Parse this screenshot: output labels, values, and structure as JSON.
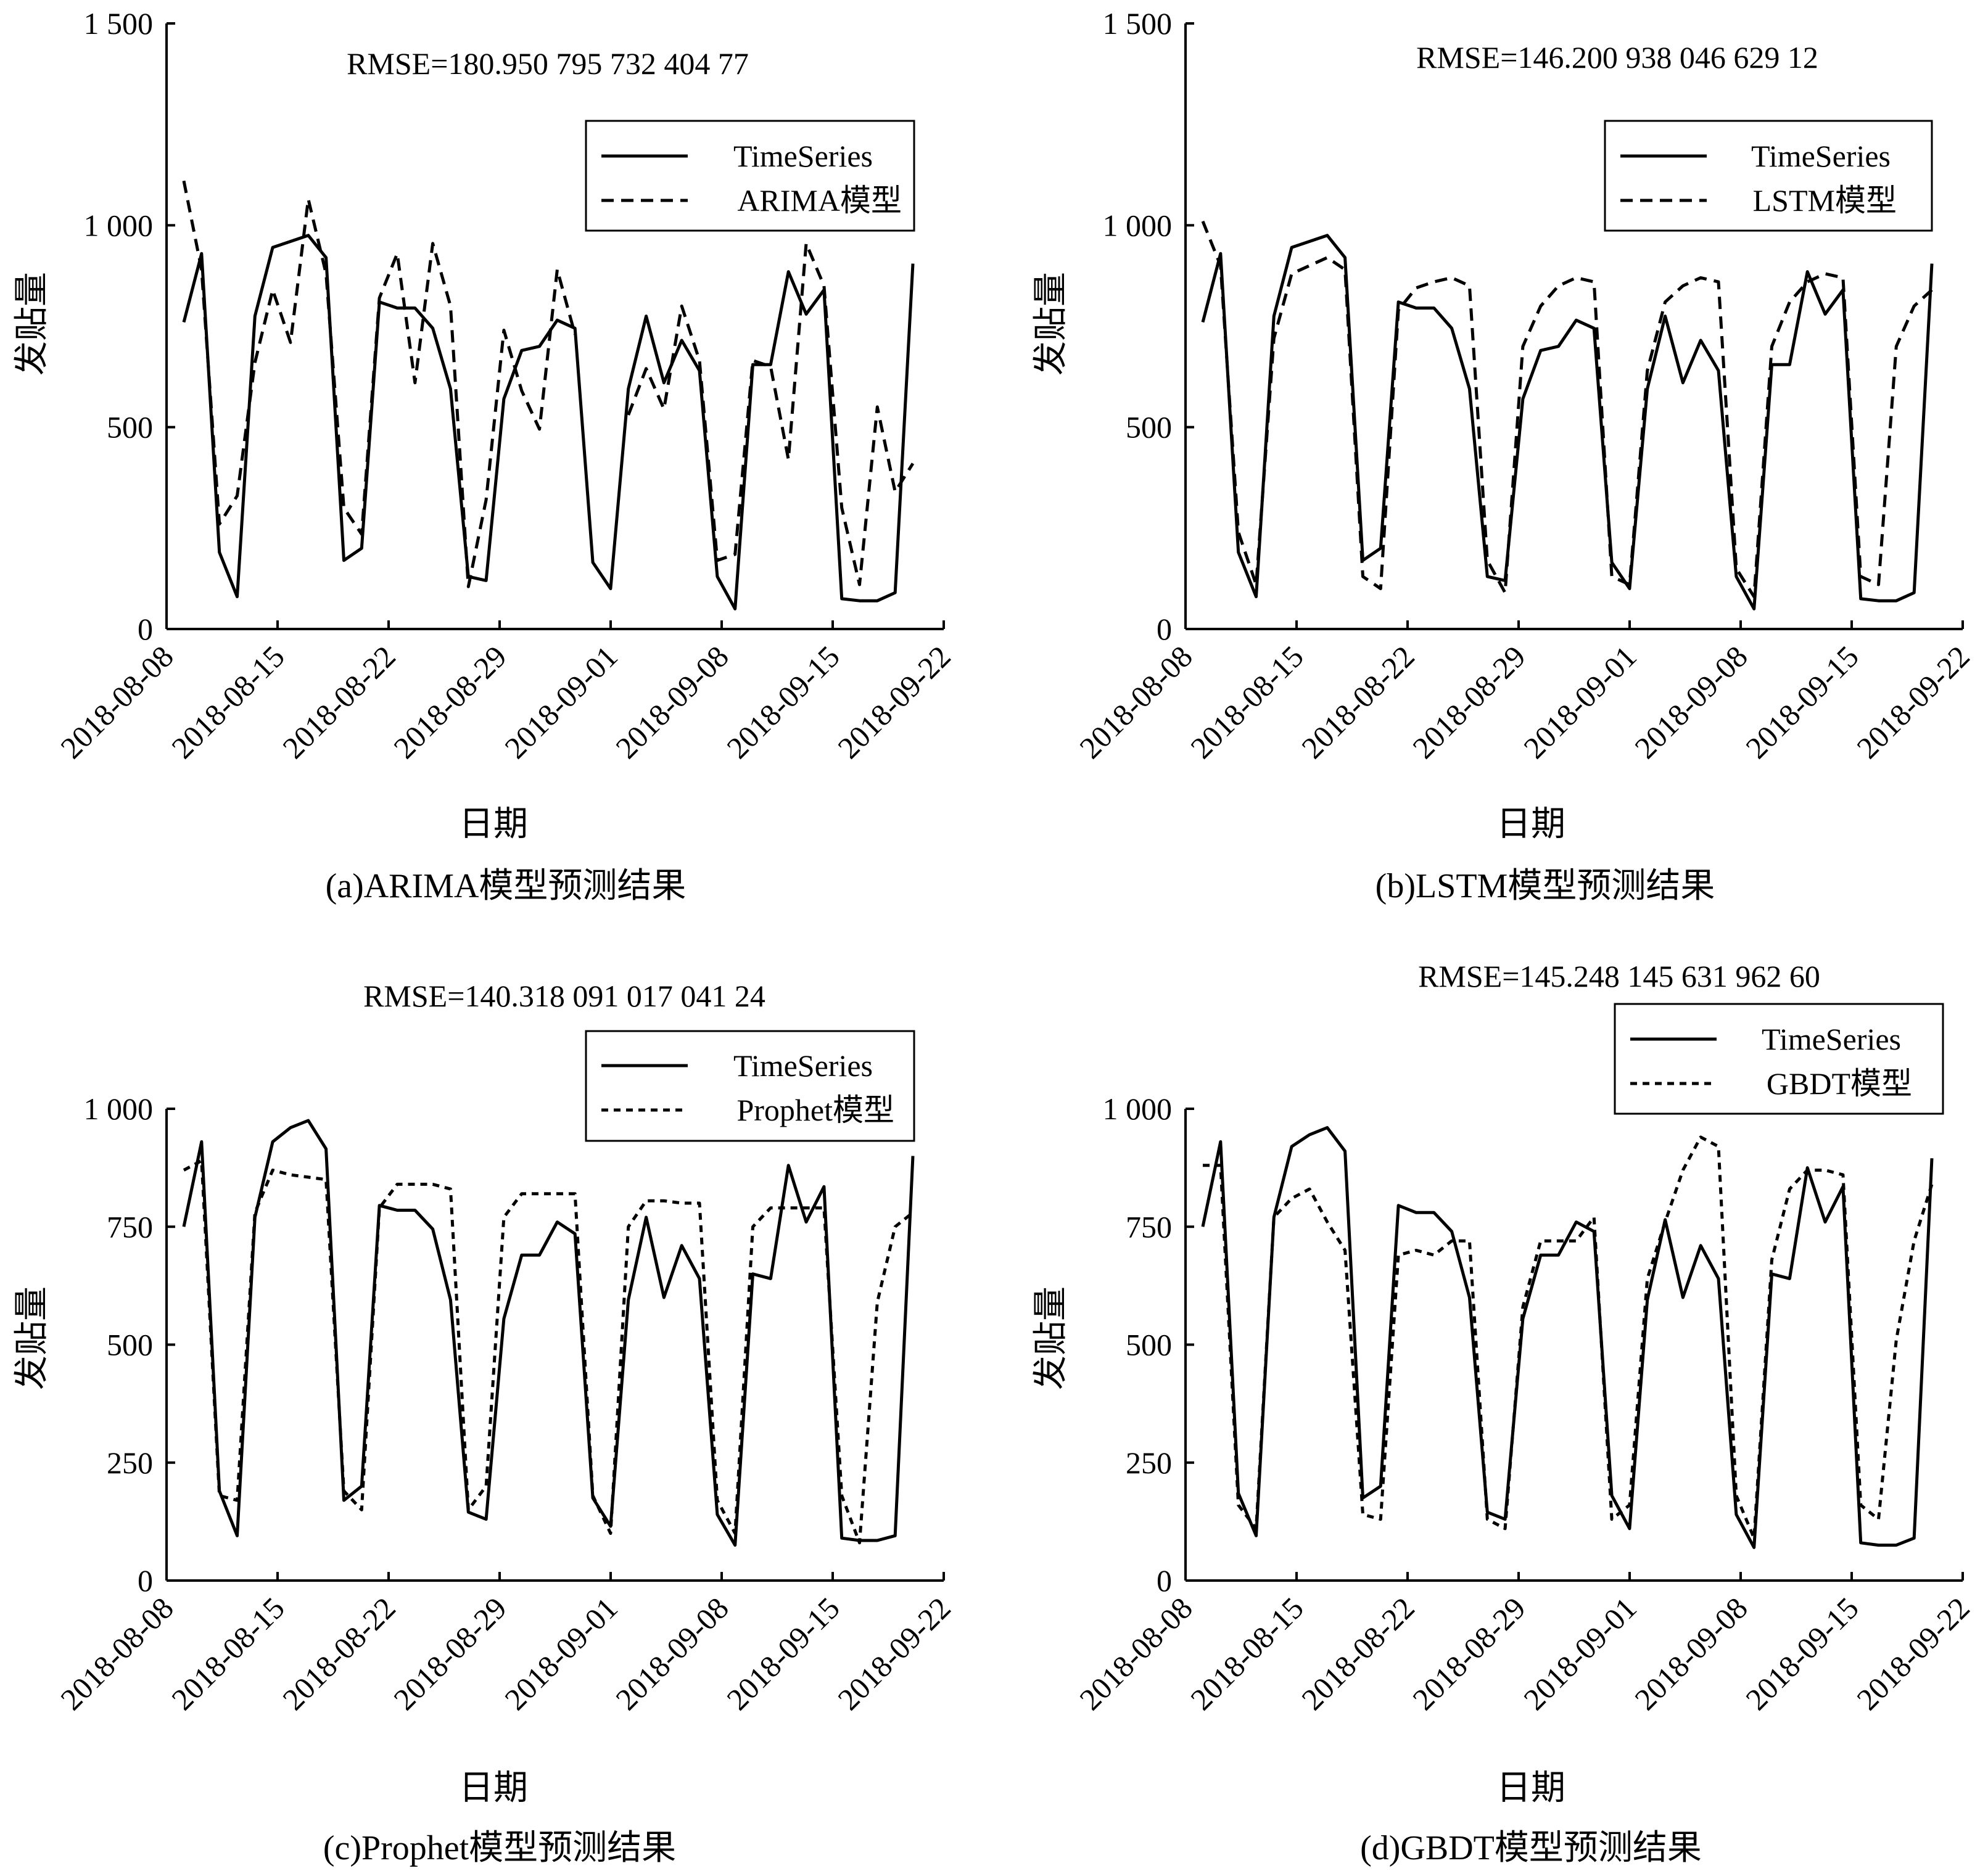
{
  "figure": {
    "ylabel": "发贴量",
    "xlabel": "日期",
    "x_tick_labels": [
      "2018-08-08",
      "2018-08-15",
      "2018-08-22",
      "2018-08-29",
      "2018-09-01",
      "2018-09-08",
      "2018-09-15",
      "2018-09-22"
    ],
    "legend_actual": "TimeSeries"
  },
  "chart_data": [
    {
      "id": "a",
      "type": "line",
      "caption": "(a)ARIMA模型预测结果",
      "annotation": "RMSE=180.950 795 732 404 77",
      "ylim": [
        0,
        1500
      ],
      "y_ticks": [
        0,
        500,
        1000,
        1500
      ],
      "y_tick_labels": [
        "0",
        "500",
        "1 000",
        "1 500"
      ],
      "xlabel": "日期",
      "ylabel": "发贴量",
      "x_tick_labels": [
        "2018-08-08",
        "2018-08-15",
        "2018-08-22",
        "2018-08-29",
        "2018-09-01",
        "2018-09-08",
        "2018-09-15",
        "2018-09-22"
      ],
      "legend": "top-right",
      "series": [
        {
          "name": "TimeSeries",
          "style": "solid",
          "values": [
            760,
            930,
            190,
            80,
            775,
            945,
            960,
            975,
            920,
            170,
            200,
            810,
            795,
            795,
            745,
            595,
            130,
            120,
            570,
            690,
            700,
            765,
            745,
            165,
            100,
            595,
            775,
            610,
            715,
            640,
            130,
            50,
            655,
            655,
            885,
            780,
            840,
            75,
            70,
            70,
            90,
            905
          ]
        },
        {
          "name": "ARIMA模型",
          "style": "dashed",
          "values": [
            1110,
            890,
            260,
            330,
            660,
            840,
            710,
            1065,
            880,
            300,
            235,
            820,
            930,
            610,
            955,
            800,
            105,
            320,
            740,
            590,
            495,
            890,
            730,
            null,
            null,
            530,
            645,
            545,
            800,
            665,
            170,
            185,
            665,
            650,
            420,
            955,
            850,
            300,
            110,
            550,
            340,
            410
          ]
        }
      ]
    },
    {
      "id": "b",
      "type": "line",
      "caption": "(b)LSTM模型预测结果",
      "annotation": "RMSE=146.200 938 046 629 12",
      "ylim": [
        0,
        1500
      ],
      "y_ticks": [
        0,
        500,
        1000,
        1500
      ],
      "y_tick_labels": [
        "0",
        "500",
        "1 000",
        "1 500"
      ],
      "xlabel": "日期",
      "ylabel": "发贴量",
      "x_tick_labels": [
        "2018-08-08",
        "2018-08-15",
        "2018-08-22",
        "2018-08-29",
        "2018-09-01",
        "2018-09-08",
        "2018-09-15",
        "2018-09-22"
      ],
      "legend": "top-right",
      "series": [
        {
          "name": "TimeSeries",
          "style": "solid",
          "values": [
            760,
            930,
            190,
            80,
            775,
            945,
            960,
            975,
            920,
            170,
            200,
            810,
            795,
            795,
            745,
            595,
            130,
            120,
            570,
            690,
            700,
            765,
            745,
            165,
            100,
            595,
            775,
            610,
            715,
            640,
            130,
            50,
            655,
            655,
            885,
            780,
            840,
            75,
            70,
            70,
            90,
            905
          ]
        },
        {
          "name": "LSTM模型",
          "style": "dashed",
          "values": [
            1010,
            900,
            240,
            110,
            720,
            880,
            900,
            920,
            890,
            130,
            100,
            790,
            845,
            860,
            870,
            850,
            170,
            90,
            700,
            800,
            850,
            870,
            860,
            130,
            110,
            640,
            810,
            850,
            870,
            860,
            150,
            80,
            700,
            810,
            860,
            880,
            870,
            130,
            110,
            700,
            800,
            840
          ]
        }
      ]
    },
    {
      "id": "c",
      "type": "line",
      "caption": "(c)Prophet模型预测结果",
      "annotation": "RMSE=140.318 091 017 041 24",
      "ylim": [
        0,
        1000
      ],
      "y_ticks": [
        0,
        250,
        500,
        750,
        1000
      ],
      "y_tick_labels": [
        "0",
        "250",
        "500",
        "750",
        "1 000"
      ],
      "xlabel": "日期",
      "ylabel": "发贴量",
      "x_tick_labels": [
        "2018-08-08",
        "2018-08-15",
        "2018-08-22",
        "2018-08-29",
        "2018-09-01",
        "2018-09-08",
        "2018-09-15",
        "2018-09-22"
      ],
      "legend": "top-right",
      "series": [
        {
          "name": "TimeSeries",
          "style": "solid",
          "values": [
            750,
            930,
            190,
            95,
            770,
            930,
            960,
            975,
            915,
            170,
            200,
            795,
            785,
            785,
            745,
            595,
            145,
            130,
            555,
            690,
            690,
            760,
            735,
            175,
            115,
            595,
            770,
            600,
            710,
            640,
            140,
            75,
            650,
            640,
            880,
            760,
            835,
            90,
            85,
            85,
            95,
            900
          ]
        },
        {
          "name": "Prophet模型",
          "style": "dotted",
          "values": [
            870,
            890,
            180,
            170,
            780,
            870,
            860,
            855,
            850,
            190,
            150,
            790,
            840,
            840,
            840,
            830,
            150,
            200,
            770,
            820,
            820,
            820,
            820,
            180,
            100,
            750,
            805,
            805,
            800,
            800,
            170,
            100,
            750,
            790,
            790,
            790,
            790,
            180,
            80,
            590,
            750,
            780
          ]
        }
      ]
    },
    {
      "id": "d",
      "type": "line",
      "caption": "(d)GBDT模型预测结果",
      "annotation": "RMSE=145.248 145 631 962 60",
      "ylim": [
        0,
        1000
      ],
      "y_ticks": [
        0,
        250,
        500,
        750,
        1000
      ],
      "y_tick_labels": [
        "0",
        "250",
        "500",
        "750",
        "1 000"
      ],
      "xlabel": "日期",
      "ylabel": "发贴量",
      "x_tick_labels": [
        "2018-08-08",
        "2018-08-15",
        "2018-08-22",
        "2018-08-29",
        "2018-09-01",
        "2018-09-08",
        "2018-09-15",
        "2018-09-22"
      ],
      "legend": "top-right",
      "series": [
        {
          "name": "TimeSeries",
          "style": "solid",
          "values": [
            750,
            930,
            185,
            95,
            770,
            920,
            945,
            960,
            910,
            175,
            200,
            795,
            780,
            780,
            740,
            600,
            145,
            130,
            555,
            690,
            690,
            760,
            740,
            180,
            110,
            595,
            765,
            600,
            710,
            640,
            140,
            70,
            650,
            640,
            875,
            760,
            835,
            80,
            75,
            75,
            90,
            895
          ]
        },
        {
          "name": "GBDT模型",
          "style": "dotted",
          "values": [
            880,
            880,
            160,
            110,
            770,
            810,
            830,
            760,
            700,
            140,
            130,
            690,
            700,
            690,
            720,
            720,
            130,
            110,
            580,
            720,
            720,
            720,
            770,
            130,
            160,
            640,
            760,
            870,
            940,
            920,
            180,
            90,
            680,
            830,
            870,
            870,
            860,
            160,
            130,
            510,
            720,
            840
          ]
        }
      ]
    }
  ]
}
